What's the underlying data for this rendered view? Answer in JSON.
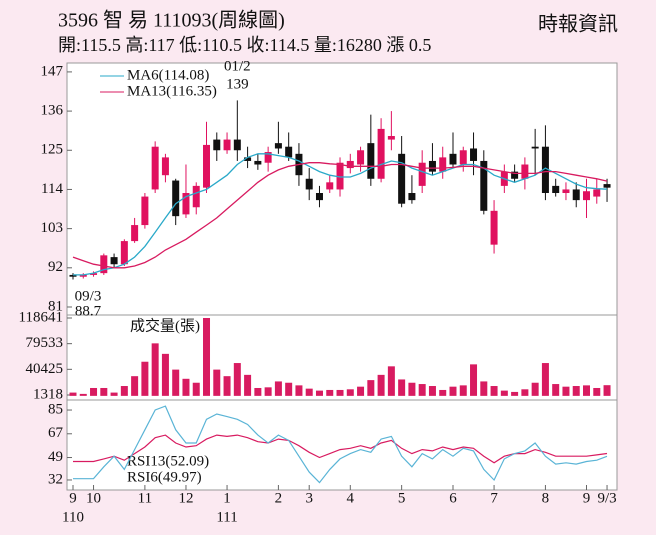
{
  "header": {
    "title": "3596 智 易 111093(周線圖)",
    "quote": "開:115.5 高:117 低:110.5 收:114.5 量:16280 漲 0.5",
    "source": "時報資訊"
  },
  "chart_data": [
    {
      "type": "candlestick",
      "up_color": "#e0115f",
      "down_color": "#111111",
      "categories": [
        "9",
        null,
        "10",
        null,
        null,
        null,
        null,
        "11",
        null,
        null,
        null,
        "12",
        null,
        null,
        null,
        "1",
        null,
        null,
        null,
        null,
        "2",
        null,
        null,
        "3",
        null,
        null,
        null,
        "4",
        null,
        null,
        null,
        null,
        "5",
        null,
        null,
        null,
        null,
        "6",
        null,
        null,
        null,
        "7",
        null,
        null,
        null,
        null,
        "8",
        null,
        null,
        null,
        "9",
        null,
        "9/3"
      ],
      "year_labels": [
        "110",
        null,
        null,
        null,
        null,
        null,
        null,
        null,
        null,
        null,
        null,
        null,
        null,
        null,
        null,
        "111",
        null,
        null,
        null,
        null,
        null,
        null,
        null,
        null,
        null,
        null,
        null,
        null,
        null,
        null,
        null,
        null,
        null,
        null,
        null,
        null,
        null,
        null,
        null,
        null,
        null,
        null,
        null,
        null,
        null,
        null,
        null,
        null,
        null,
        null,
        null,
        null,
        null
      ],
      "high_label_date": "01/2",
      "low_label_date": "09/3",
      "open": [
        90,
        89.5,
        90,
        90.5,
        95,
        93,
        99.5,
        104,
        114,
        118,
        116.5,
        107,
        109,
        114.5,
        128,
        125,
        128,
        123,
        122,
        121.5,
        127,
        126,
        124,
        117,
        113,
        114,
        114,
        120,
        121,
        127,
        117,
        128,
        124,
        113,
        115,
        122,
        119,
        124,
        121,
        125.5,
        122,
        98.5,
        115,
        119,
        117,
        126,
        126,
        115,
        113,
        114,
        111,
        112,
        115.5
      ],
      "high": [
        90.5,
        90.5,
        91,
        96,
        96,
        100,
        106,
        113,
        127.5,
        124,
        117,
        121,
        116,
        133,
        130,
        130,
        139,
        126,
        124,
        126,
        133,
        130,
        127,
        120,
        115,
        118,
        123,
        124,
        126,
        135,
        134,
        136,
        129,
        118,
        125,
        127,
        126,
        130,
        126,
        130,
        125,
        111,
        121,
        121,
        123,
        131,
        132,
        117,
        116,
        116,
        117,
        117,
        117
      ],
      "low": [
        88.7,
        89,
        89.5,
        90,
        92,
        92.5,
        99,
        103,
        113,
        116,
        104,
        106,
        107,
        113,
        122,
        124,
        122,
        120,
        119.5,
        119,
        124,
        122,
        115,
        111,
        109,
        113,
        112,
        118.5,
        119,
        115,
        116,
        125,
        109,
        110,
        113,
        118,
        117,
        120,
        119,
        118,
        107,
        96,
        113,
        116,
        114,
        118,
        111,
        112,
        111,
        109,
        106,
        110,
        110.5
      ],
      "close": [
        89.5,
        90,
        90.5,
        95.5,
        93,
        99.5,
        104,
        112,
        126,
        123,
        106.5,
        113,
        115,
        126.5,
        125,
        128,
        125,
        122,
        121,
        124.5,
        125.5,
        123,
        118,
        114,
        111,
        116,
        121.5,
        122,
        125,
        117,
        131,
        129,
        110,
        111,
        121.5,
        119,
        123,
        121,
        125,
        122,
        108,
        108,
        119,
        117,
        121,
        125.5,
        113,
        113,
        114,
        111,
        113.5,
        114,
        114.5
      ],
      "series": [
        {
          "name": "MA6(114.08)",
          "color": "#2aa9c9",
          "values": [
            90,
            90,
            90.5,
            91.5,
            92,
            93,
            95,
            98,
            102,
            106,
            110,
            112,
            113,
            114,
            116,
            118,
            121,
            123,
            124,
            124,
            123.5,
            123,
            122,
            120.5,
            119,
            118,
            117.5,
            117.5,
            118.5,
            120,
            121,
            122,
            121.5,
            120,
            119,
            118,
            119,
            120,
            121,
            121,
            120,
            118,
            117,
            116,
            117,
            118,
            120,
            118.5,
            117,
            115.5,
            114.5,
            114.2,
            114.08
          ]
        },
        {
          "name": "MA13(116.35)",
          "color": "#d81b60",
          "values": [
            95,
            94,
            93,
            92.5,
            92,
            92,
            92.5,
            93.5,
            95,
            97,
            98.5,
            100,
            102,
            104,
            106,
            108.5,
            111,
            113.5,
            116,
            118,
            119.5,
            120.5,
            121,
            121.5,
            121.5,
            121.2,
            121,
            120.5,
            120.5,
            120.5,
            120.5,
            121,
            121,
            120.5,
            120,
            120,
            120,
            120.2,
            120.5,
            120.5,
            120,
            119.5,
            119,
            118.5,
            118.5,
            118.5,
            119,
            119,
            118.5,
            118,
            117.5,
            117,
            116.35
          ]
        }
      ],
      "ylim": [
        78.75,
        149.5
      ],
      "yticks": [
        81,
        92,
        103,
        114,
        125,
        136,
        147
      ]
    },
    {
      "type": "bar",
      "series": [
        {
          "name": "成交量(張)",
          "color": "#d81b60",
          "values": [
            5000,
            3000,
            12000,
            12000,
            5000,
            15000,
            30000,
            52000,
            80000,
            64000,
            40000,
            26000,
            20000,
            118641,
            40000,
            30000,
            50000,
            32000,
            12000,
            13000,
            22000,
            20000,
            16000,
            11000,
            8000,
            9000,
            9000,
            10000,
            14000,
            24000,
            32000,
            45000,
            25000,
            20000,
            18000,
            15000,
            9000,
            14000,
            16000,
            48000,
            22000,
            15000,
            8000,
            6000,
            10000,
            20000,
            50000,
            18000,
            14000,
            15000,
            16000,
            12000,
            16280
          ]
        }
      ],
      "ylim": [
        -6300,
        123200
      ],
      "yticks": [
        1318,
        40425,
        79533,
        118641
      ]
    },
    {
      "type": "line",
      "series": [
        {
          "name": "RSI13(52.09)",
          "color": "#d81b60",
          "values": [
            46,
            46,
            46,
            48,
            50,
            47,
            52,
            57,
            64,
            66,
            60,
            57,
            58,
            63,
            66,
            65,
            66,
            64,
            61,
            60,
            63,
            62,
            58,
            53,
            49,
            52,
            55,
            56,
            58,
            56,
            60,
            62,
            56,
            52,
            55,
            54,
            57,
            55,
            57,
            56,
            50,
            45,
            50,
            52,
            52,
            55,
            53,
            50,
            50,
            50,
            50,
            51,
            52.09
          ]
        },
        {
          "name": "RSI6(49.97)",
          "color": "#5ab4d6",
          "values": [
            33,
            33,
            33,
            42,
            50,
            40,
            55,
            70,
            85,
            88,
            70,
            60,
            60,
            78,
            82,
            80,
            78,
            74,
            66,
            60,
            66,
            62,
            50,
            38,
            30,
            40,
            48,
            52,
            55,
            53,
            63,
            65,
            50,
            42,
            52,
            48,
            55,
            50,
            56,
            54,
            40,
            32,
            48,
            52,
            54,
            60,
            50,
            44,
            45,
            44,
            46,
            47,
            49.97
          ]
        }
      ],
      "ylim": [
        24.4,
        92.6
      ],
      "yticks": [
        32,
        49,
        67,
        85
      ]
    }
  ]
}
